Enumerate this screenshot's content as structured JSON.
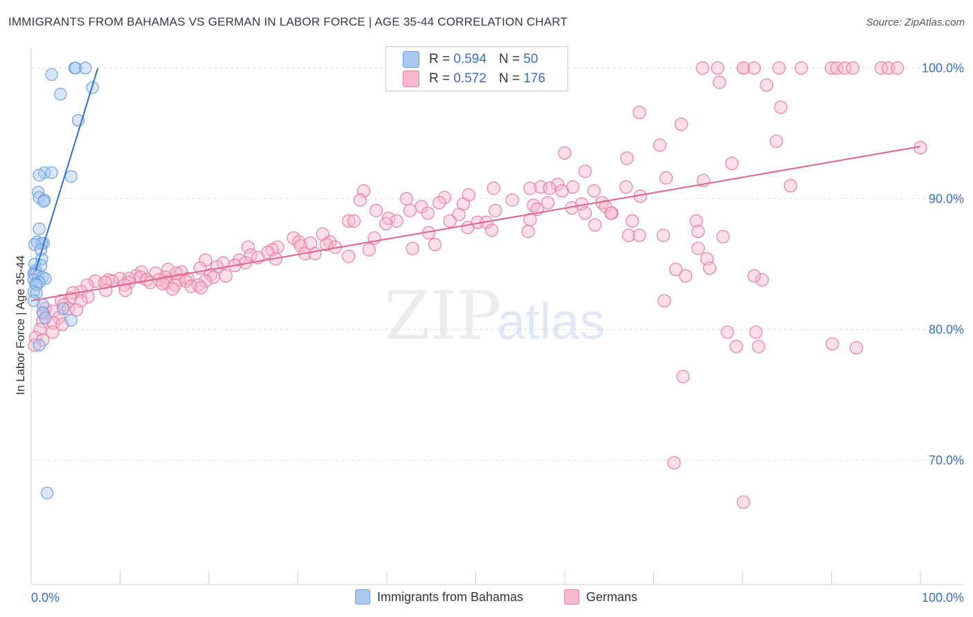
{
  "title": "IMMIGRANTS FROM BAHAMAS VS GERMAN IN LABOR FORCE | AGE 35-44 CORRELATION CHART",
  "source": "Source: ZipAtlas.com",
  "watermark": {
    "zip": "ZIP",
    "atlas": "atlas"
  },
  "legend_top": {
    "rows": [
      {
        "r_label": "R =",
        "r_value": "0.594",
        "n_label": "N =",
        "n_value": "50",
        "color": "#a8c8f0"
      },
      {
        "r_label": "R =",
        "r_value": "0.572",
        "n_label": "N =",
        "n_value": "176",
        "color": "#f8b8cc"
      }
    ]
  },
  "legend_bottom": [
    {
      "label": "Immigrants from Bahamas",
      "color": "#a8c8f0"
    },
    {
      "label": "Germans",
      "color": "#f8b8cc"
    }
  ],
  "chart_data": {
    "type": "scatter",
    "title": "IMMIGRANTS FROM BAHAMAS VS GERMAN IN LABOR FORCE | AGE 35-44 CORRELATION CHART",
    "xlabel": "",
    "ylabel": "In Labor Force | Age 35-44",
    "xlim": [
      0,
      100
    ],
    "ylim": [
      60.5,
      101.5
    ],
    "x_tick_labels": {
      "0": "0.0%",
      "100": "100.0%"
    },
    "y_ticks": [
      70,
      80,
      90,
      100
    ],
    "y_tick_labels": [
      "70.0%",
      "80.0%",
      "90.0%",
      "100.0%"
    ],
    "grid": true,
    "series": [
      {
        "name": "Immigrants from Bahamas",
        "color": "#6fa0e0",
        "fill": "#a8c8f0",
        "line_color": "#2a6fd6",
        "trend": [
          [
            0.5,
            84.5
          ],
          [
            7.5,
            100.0
          ]
        ],
        "points": [
          [
            4.9,
            100.0
          ],
          [
            5.0,
            100.0
          ],
          [
            6.1,
            100.0
          ],
          [
            2.3,
            99.5
          ],
          [
            3.3,
            98.0
          ],
          [
            6.9,
            98.5
          ],
          [
            5.3,
            96.0
          ],
          [
            1.5,
            92.0
          ],
          [
            2.3,
            92.0
          ],
          [
            0.9,
            91.8
          ],
          [
            4.5,
            91.7
          ],
          [
            0.8,
            90.5
          ],
          [
            0.9,
            90.1
          ],
          [
            1.5,
            89.9
          ],
          [
            1.4,
            89.8
          ],
          [
            0.9,
            87.7
          ],
          [
            0.7,
            86.7
          ],
          [
            1.4,
            86.6
          ],
          [
            1.2,
            86.6
          ],
          [
            0.4,
            86.5
          ],
          [
            1.1,
            86.1
          ],
          [
            1.2,
            85.4
          ],
          [
            0.4,
            85.0
          ],
          [
            1.1,
            84.9
          ],
          [
            0.5,
            84.5
          ],
          [
            0.3,
            84.3
          ],
          [
            0.4,
            84.2
          ],
          [
            0.8,
            84.1
          ],
          [
            1.3,
            84.0
          ],
          [
            1.6,
            83.9
          ],
          [
            0.3,
            83.8
          ],
          [
            0.9,
            83.6
          ],
          [
            0.5,
            83.5
          ],
          [
            0.6,
            83.4
          ],
          [
            0.3,
            82.9
          ],
          [
            0.6,
            82.8
          ],
          [
            1.3,
            81.9
          ],
          [
            0.3,
            82.2
          ],
          [
            3.6,
            81.6
          ],
          [
            1.3,
            81.3
          ],
          [
            1.6,
            80.9
          ],
          [
            4.5,
            80.7
          ],
          [
            0.9,
            78.8
          ],
          [
            1.8,
            67.5
          ]
        ]
      },
      {
        "name": "Germans",
        "color": "#e87fa0",
        "fill": "#f8b8cc",
        "line_color": "#e0628f",
        "trend": [
          [
            0.0,
            82.2
          ],
          [
            100.0,
            94.0
          ]
        ],
        "points": [
          [
            75.5,
            100.0
          ],
          [
            77.2,
            100.0
          ],
          [
            80.1,
            100.0
          ],
          [
            80.1,
            100.0
          ],
          [
            81.3,
            100.0
          ],
          [
            84.1,
            100.0
          ],
          [
            86.6,
            100.0
          ],
          [
            90.0,
            100.0
          ],
          [
            90.6,
            100.0
          ],
          [
            91.5,
            100.0
          ],
          [
            92.4,
            100.0
          ],
          [
            95.6,
            100.0
          ],
          [
            96.4,
            100.0
          ],
          [
            97.4,
            100.0
          ],
          [
            77.4,
            98.9
          ],
          [
            82.7,
            98.7
          ],
          [
            84.3,
            97.0
          ],
          [
            68.4,
            96.6
          ],
          [
            73.1,
            95.7
          ],
          [
            83.8,
            94.4
          ],
          [
            70.7,
            94.1
          ],
          [
            100.0,
            93.9
          ],
          [
            60.0,
            93.5
          ],
          [
            67.0,
            93.1
          ],
          [
            78.8,
            92.7
          ],
          [
            62.3,
            92.1
          ],
          [
            71.4,
            91.6
          ],
          [
            75.6,
            91.4
          ],
          [
            59.2,
            91.1
          ],
          [
            66.9,
            90.9
          ],
          [
            85.4,
            91.0
          ],
          [
            57.3,
            90.9
          ],
          [
            58.3,
            90.8
          ],
          [
            52.0,
            90.8
          ],
          [
            60.9,
            90.9
          ],
          [
            56.1,
            90.8
          ],
          [
            59.7,
            90.6
          ],
          [
            63.3,
            90.6
          ],
          [
            37.4,
            90.6
          ],
          [
            68.5,
            90.2
          ],
          [
            49.2,
            90.3
          ],
          [
            46.5,
            90.1
          ],
          [
            42.2,
            90.0
          ],
          [
            54.1,
            89.9
          ],
          [
            37.0,
            89.9
          ],
          [
            58.1,
            89.7
          ],
          [
            45.9,
            89.7
          ],
          [
            48.6,
            89.6
          ],
          [
            64.2,
            89.7
          ],
          [
            61.9,
            89.6
          ],
          [
            56.5,
            89.5
          ],
          [
            43.9,
            89.4
          ],
          [
            64.6,
            89.4
          ],
          [
            60.8,
            89.3
          ],
          [
            56.9,
            89.2
          ],
          [
            38.8,
            89.1
          ],
          [
            42.6,
            89.1
          ],
          [
            52.2,
            89.1
          ],
          [
            44.6,
            88.9
          ],
          [
            62.3,
            88.9
          ],
          [
            65.3,
            88.9
          ],
          [
            65.2,
            88.9
          ],
          [
            48.1,
            88.8
          ],
          [
            40.2,
            88.5
          ],
          [
            56.1,
            88.4
          ],
          [
            67.6,
            88.3
          ],
          [
            35.7,
            88.3
          ],
          [
            41.1,
            88.3
          ],
          [
            47.1,
            88.3
          ],
          [
            74.8,
            88.3
          ],
          [
            36.3,
            88.3
          ],
          [
            50.2,
            88.2
          ],
          [
            51.2,
            88.2
          ],
          [
            39.9,
            88.1
          ],
          [
            63.4,
            88.0
          ],
          [
            49.1,
            87.8
          ],
          [
            51.8,
            87.6
          ],
          [
            75.0,
            87.5
          ],
          [
            55.9,
            87.5
          ],
          [
            44.7,
            87.4
          ],
          [
            32.8,
            87.3
          ],
          [
            67.2,
            87.2
          ],
          [
            68.4,
            87.2
          ],
          [
            71.1,
            87.2
          ],
          [
            77.8,
            87.1
          ],
          [
            38.6,
            87.0
          ],
          [
            29.5,
            87.0
          ],
          [
            30.1,
            86.7
          ],
          [
            33.6,
            86.7
          ],
          [
            31.4,
            86.6
          ],
          [
            45.4,
            86.5
          ],
          [
            33.2,
            86.5
          ],
          [
            30.3,
            86.4
          ],
          [
            27.7,
            86.3
          ],
          [
            24.4,
            86.3
          ],
          [
            34.2,
            86.3
          ],
          [
            42.9,
            86.2
          ],
          [
            38.0,
            86.1
          ],
          [
            27.1,
            86.1
          ],
          [
            26.6,
            85.9
          ],
          [
            30.8,
            85.8
          ],
          [
            31.9,
            85.8
          ],
          [
            24.7,
            85.7
          ],
          [
            35.7,
            85.6
          ],
          [
            25.5,
            85.5
          ],
          [
            27.5,
            85.4
          ],
          [
            23.4,
            85.3
          ],
          [
            19.6,
            85.3
          ],
          [
            24.1,
            85.1
          ],
          [
            21.6,
            85.1
          ],
          [
            22.9,
            84.9
          ],
          [
            20.9,
            84.8
          ],
          [
            19.0,
            84.7
          ],
          [
            15.4,
            84.6
          ],
          [
            16.9,
            84.4
          ],
          [
            12.4,
            84.4
          ],
          [
            14.0,
            84.3
          ],
          [
            16.3,
            84.3
          ],
          [
            20.2,
            84.2
          ],
          [
            21.9,
            84.1
          ],
          [
            11.8,
            84.1
          ],
          [
            20.5,
            84.0
          ],
          [
            15.1,
            84.0
          ],
          [
            12.3,
            84.0
          ],
          [
            10.0,
            83.9
          ],
          [
            11.0,
            83.9
          ],
          [
            17.6,
            83.9
          ],
          [
            13.0,
            83.8
          ],
          [
            14.4,
            83.8
          ],
          [
            16.6,
            83.8
          ],
          [
            8.7,
            83.8
          ],
          [
            17.4,
            83.7
          ],
          [
            19.6,
            83.7
          ],
          [
            9.1,
            83.7
          ],
          [
            7.2,
            83.7
          ],
          [
            13.4,
            83.6
          ],
          [
            8.3,
            83.6
          ],
          [
            15.2,
            83.6
          ],
          [
            11.0,
            83.6
          ],
          [
            14.8,
            83.5
          ],
          [
            18.8,
            83.4
          ],
          [
            6.3,
            83.4
          ],
          [
            10.5,
            83.4
          ],
          [
            16.2,
            83.4
          ],
          [
            18.0,
            83.3
          ],
          [
            19.1,
            83.2
          ],
          [
            15.9,
            83.1
          ],
          [
            10.6,
            83.0
          ],
          [
            8.4,
            83.0
          ],
          [
            5.6,
            82.9
          ],
          [
            4.7,
            82.8
          ],
          [
            6.4,
            82.5
          ],
          [
            4.4,
            82.4
          ],
          [
            3.4,
            82.2
          ],
          [
            5.6,
            82.2
          ],
          [
            3.7,
            81.9
          ],
          [
            4.2,
            81.6
          ],
          [
            1.6,
            81.6
          ],
          [
            5.1,
            81.5
          ],
          [
            2.5,
            81.4
          ],
          [
            1.4,
            81.2
          ],
          [
            3.1,
            80.9
          ],
          [
            1.3,
            80.6
          ],
          [
            2.5,
            80.5
          ],
          [
            3.5,
            80.4
          ],
          [
            1.0,
            80.0
          ],
          [
            2.4,
            79.8
          ],
          [
            0.5,
            79.4
          ],
          [
            1.3,
            79.2
          ],
          [
            0.4,
            78.8
          ],
          [
            78.3,
            79.8
          ],
          [
            81.5,
            79.8
          ],
          [
            90.1,
            78.9
          ],
          [
            81.8,
            78.7
          ],
          [
            71.2,
            82.2
          ],
          [
            82.2,
            83.8
          ],
          [
            81.3,
            84.1
          ],
          [
            73.6,
            84.1
          ],
          [
            72.5,
            84.6
          ],
          [
            76.0,
            85.4
          ],
          [
            75.0,
            86.2
          ],
          [
            76.3,
            84.7
          ],
          [
            92.8,
            78.6
          ],
          [
            73.3,
            76.4
          ],
          [
            79.3,
            78.7
          ],
          [
            72.3,
            69.8
          ],
          [
            80.1,
            66.8
          ]
        ]
      }
    ]
  }
}
